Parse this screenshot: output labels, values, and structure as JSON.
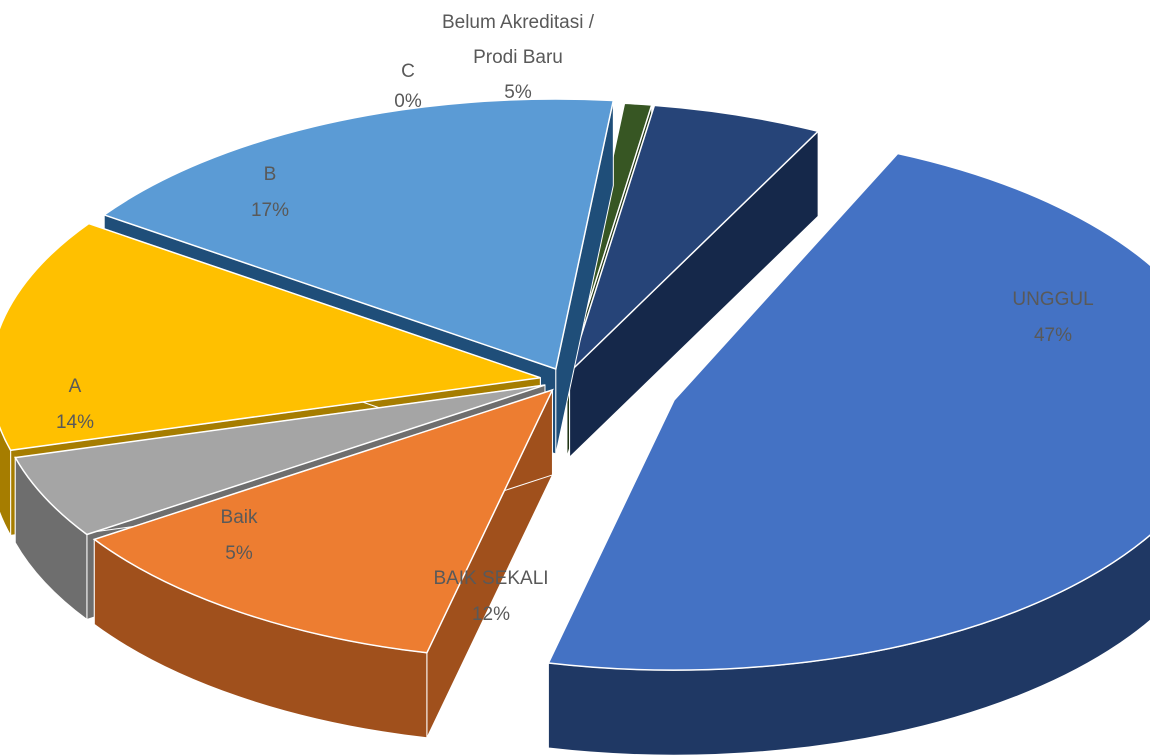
{
  "chart_data": {
    "type": "pie",
    "title": "",
    "legend": "none",
    "slices": [
      {
        "name": "UNGGUL",
        "value": 47,
        "label": "47%",
        "color": "#4472C4",
        "side": "#1F3864"
      },
      {
        "name": "BAIK SEKALI",
        "value": 12,
        "label": "12%",
        "color": "#ED7D31",
        "side": "#A0501C"
      },
      {
        "name": "Baik",
        "value": 5,
        "label": "5%",
        "color": "#A5A5A5",
        "side": "#6E6E6E"
      },
      {
        "name": "A",
        "value": 14,
        "label": "14%",
        "color": "#FFC000",
        "side": "#A67D00"
      },
      {
        "name": "B",
        "value": 17,
        "label": "17%",
        "color": "#5B9BD5",
        "side": "#1F4E79"
      },
      {
        "name": "C",
        "value": 0,
        "label": "0%",
        "color": "#375623",
        "side": "#213515"
      },
      {
        "name_lines": [
          "Belum Akreditasi /",
          "Prodi Baru"
        ],
        "value": 5,
        "label": "5%",
        "color": "#264478",
        "side": "#15284A"
      }
    ]
  }
}
